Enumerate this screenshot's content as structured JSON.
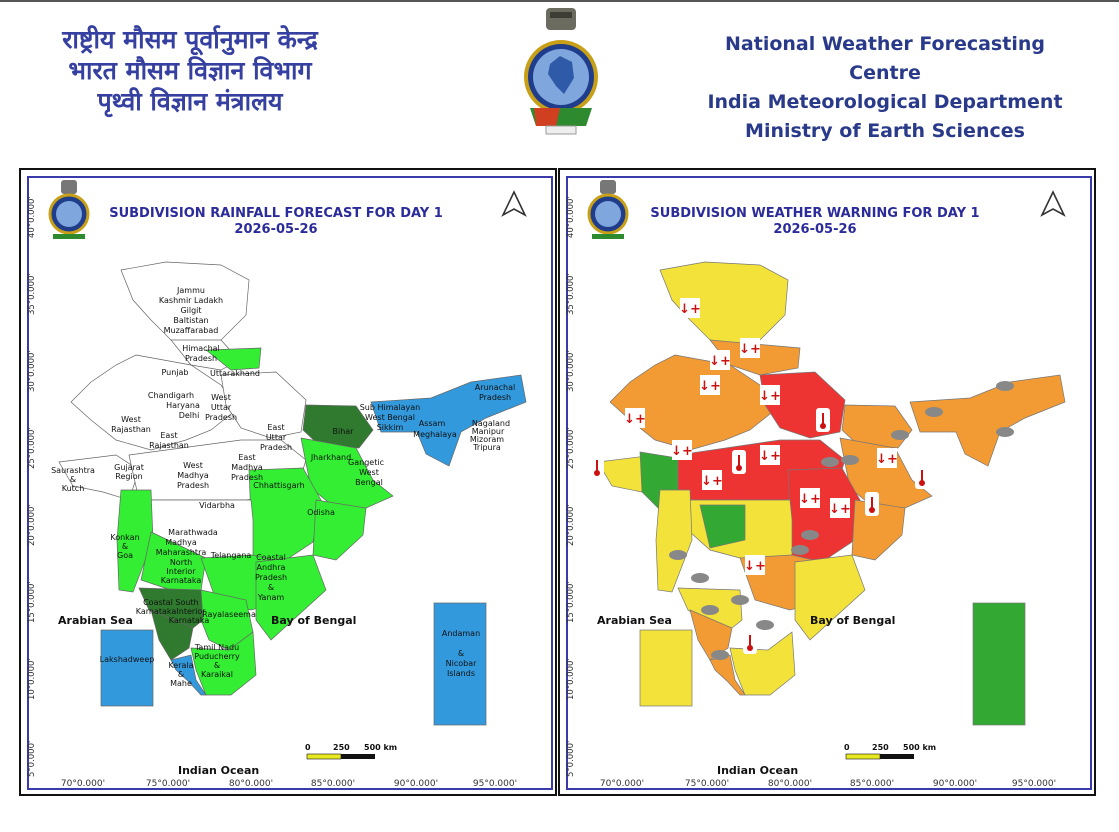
{
  "header": {
    "hindi_lines": [
      "राष्ट्रीय मौसम पूर्वानुमान केन्द्र",
      "भारत मौसम विज्ञान विभाग",
      "पृथ्वी विज्ञान मंत्रालय"
    ],
    "english_lines": [
      "National Weather Forecasting Centre",
      "India Meteorological Department",
      "Ministry of Earth Sciences"
    ]
  },
  "colors": {
    "heading": "#2b2b9a",
    "frame": "#3a3aa8",
    "rain_green": "#33ee33",
    "rain_darkgreen": "#2f7a2f",
    "rain_blue": "#3399dd",
    "warn_yellow": "#f2e23a",
    "warn_orange": "#f29a33",
    "warn_red": "#ee3333",
    "warn_green": "#33a833"
  },
  "maps": [
    {
      "title": "SUBDIVISION RAINFALL FORECAST FOR DAY 1",
      "date": "2026-05-26",
      "lon_labels": [
        "70°0.000'",
        "75°0.000'",
        "80°0.000'",
        "85°0.000'",
        "90°0.000'",
        "95°0.000'"
      ],
      "lat_labels": [
        "40°0.000'",
        "35°0.000'",
        "30°0.000'",
        "25°0.000'",
        "20°0.000'",
        "15°0.000'",
        "10°0.000'",
        "5°0.000'"
      ],
      "sea_labels": [
        "Arabian Sea",
        "Bay of Bengal",
        "Indian Ocean"
      ],
      "scale_labels": [
        "0",
        "250",
        "500 km"
      ],
      "region_labels": [
        "Jammu",
        "Kashmir Ladakh",
        "Gilgit",
        "Baltistan",
        "Muzaffarabad",
        "Himachal",
        "Pradesh",
        "Punjab",
        "Uttarakhand",
        "Chandigarh",
        "Haryana",
        "Delhi",
        "West",
        "Uttar",
        "Pradesh",
        "West",
        "Rajasthan",
        "East",
        "Rajasthan",
        "East",
        "Uttar",
        "Pradesh",
        "Bihar",
        "Sub Himalayan",
        "West Bengal",
        "Sikkim",
        "Arunachal",
        "Pradesh",
        "Assam",
        "Meghalaya",
        "Nagaland",
        "Manipur",
        "Mizoram",
        "Tripura",
        "Jharkhand",
        "Gangetic",
        "West",
        "Bengal",
        "West",
        "Madhya",
        "Pradesh",
        "East",
        "Madhya",
        "Pradesh",
        "Saurashtra",
        "&",
        "Kutch",
        "Gujarat",
        "Region",
        "Chhattisgarh",
        "Odisha",
        "Vidarbha",
        "Marathwada",
        "Madhya",
        "Maharashtra",
        "Konkan",
        "&",
        "Goa",
        "North",
        "Interior",
        "Karnataka",
        "Telangana",
        "Coastal",
        "Andhra",
        "Pradesh",
        "&",
        "Yanam",
        "Rayalaseema",
        "Coastal",
        "South",
        "Karnataka",
        "Interior",
        "Karnataka",
        "Tamil Nadu",
        "Puducherry",
        "&",
        "Karaikal",
        "Kerala",
        "&",
        "Mahe",
        "Lakshadweep",
        "Andaman",
        "&",
        "Nicobar",
        "Islands"
      ]
    },
    {
      "title": "SUBDIVISION WEATHER WARNING FOR DAY 1",
      "date": "2026-05-26",
      "lon_labels": [
        "70°0.000'",
        "75°0.000'",
        "80°0.000'",
        "85°0.000'",
        "90°0.000'",
        "95°0.000'"
      ],
      "lat_labels": [
        "40°0.000'",
        "35°0.000'",
        "30°0.000'",
        "25°0.000'",
        "20°0.000'",
        "15°0.000'",
        "10°0.000'",
        "5°0.000'"
      ],
      "sea_labels": [
        "Arabian Sea",
        "Bay of Bengal",
        "Indian Ocean"
      ],
      "scale_labels": [
        "0",
        "250",
        "500 km"
      ],
      "warning_icons": [
        "heatwave-icon",
        "hot-day-icon",
        "thunderstorm-icon"
      ]
    }
  ]
}
